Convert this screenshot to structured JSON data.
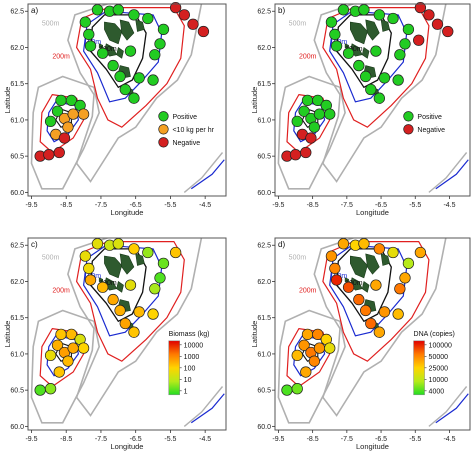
{
  "colors": {
    "land": "#2e5a2e",
    "c500": "#b0b0b0",
    "c200": "#e02020",
    "c150": "#1a2ad0",
    "c100": "#111111",
    "positive": "#22cc22",
    "low": "#f5a023",
    "negative": "#d42020",
    "frame": "#555555"
  },
  "axes": {
    "xlabel": "Longitude",
    "ylabel": "Latitude",
    "xticks": [
      "-9.5",
      "-8.5",
      "-7.5",
      "-6.5",
      "-5.5",
      "-4.5"
    ],
    "yticks": [
      "60.0",
      "60.5",
      "61.0",
      "61.5",
      "62.0",
      "62.5"
    ],
    "xlim": [
      -9.6,
      -3.9
    ],
    "ylim": [
      59.95,
      62.6
    ]
  },
  "depth_labels": [
    "500m",
    "200m",
    "150m",
    "100m"
  ],
  "chart_data": [
    {
      "panel": "a)",
      "type": "scatter",
      "legend": {
        "type": "categorical",
        "position": "center-right",
        "items": [
          {
            "label": "Positive",
            "color": "#22cc22"
          },
          {
            "label": "<10 kg per hr",
            "color": "#f5a023"
          },
          {
            "label": "Negative",
            "color": "#d42020"
          }
        ]
      },
      "points": [
        {
          "x": -7.6,
          "y": 62.52,
          "cat": "positive"
        },
        {
          "x": -7.25,
          "y": 62.5,
          "cat": "positive"
        },
        {
          "x": -7.0,
          "y": 62.52,
          "cat": "positive"
        },
        {
          "x": -6.55,
          "y": 62.45,
          "cat": "positive"
        },
        {
          "x": -6.15,
          "y": 62.4,
          "cat": "positive"
        },
        {
          "x": -5.7,
          "y": 62.25,
          "cat": "positive"
        },
        {
          "x": -5.8,
          "y": 62.05,
          "cat": "positive"
        },
        {
          "x": -7.95,
          "y": 62.35,
          "cat": "positive"
        },
        {
          "x": -7.85,
          "y": 62.18,
          "cat": "positive"
        },
        {
          "x": -7.8,
          "y": 62.02,
          "cat": "positive"
        },
        {
          "x": -7.45,
          "y": 61.92,
          "cat": "positive"
        },
        {
          "x": -6.65,
          "y": 61.95,
          "cat": "positive"
        },
        {
          "x": -5.95,
          "y": 61.9,
          "cat": "positive"
        },
        {
          "x": -7.15,
          "y": 61.75,
          "cat": "positive"
        },
        {
          "x": -6.95,
          "y": 61.6,
          "cat": "positive"
        },
        {
          "x": -6.4,
          "y": 61.58,
          "cat": "positive"
        },
        {
          "x": -6.8,
          "y": 61.42,
          "cat": "positive"
        },
        {
          "x": -6.55,
          "y": 61.3,
          "cat": "positive"
        },
        {
          "x": -6.0,
          "y": 61.55,
          "cat": "positive"
        },
        {
          "x": -5.35,
          "y": 62.55,
          "cat": "negative"
        },
        {
          "x": -5.1,
          "y": 62.45,
          "cat": "negative"
        },
        {
          "x": -4.85,
          "y": 62.32,
          "cat": "negative"
        },
        {
          "x": -4.55,
          "y": 62.22,
          "cat": "negative"
        },
        {
          "x": -8.65,
          "y": 61.27,
          "cat": "positive"
        },
        {
          "x": -8.35,
          "y": 61.27,
          "cat": "positive"
        },
        {
          "x": -8.1,
          "y": 61.2,
          "cat": "positive"
        },
        {
          "x": -8.75,
          "y": 61.12,
          "cat": "positive"
        },
        {
          "x": -8.95,
          "y": 60.98,
          "cat": "positive"
        },
        {
          "x": -8.55,
          "y": 61.02,
          "cat": "low"
        },
        {
          "x": -8.3,
          "y": 61.08,
          "cat": "low"
        },
        {
          "x": -8.0,
          "y": 61.08,
          "cat": "low"
        },
        {
          "x": -8.45,
          "y": 60.9,
          "cat": "low"
        },
        {
          "x": -8.8,
          "y": 60.8,
          "cat": "low"
        },
        {
          "x": -8.55,
          "y": 60.75,
          "cat": "negative"
        },
        {
          "x": -9.25,
          "y": 60.5,
          "cat": "negative"
        },
        {
          "x": -9.0,
          "y": 60.52,
          "cat": "negative"
        },
        {
          "x": -8.7,
          "y": 60.55,
          "cat": "negative"
        }
      ]
    },
    {
      "panel": "b)",
      "type": "scatter",
      "legend": {
        "type": "categorical",
        "position": "center-right",
        "items": [
          {
            "label": "Positive",
            "color": "#22cc22"
          },
          {
            "label": "Negative",
            "color": "#d42020"
          }
        ]
      },
      "points": [
        {
          "x": -7.6,
          "y": 62.52,
          "cat": "positive"
        },
        {
          "x": -7.25,
          "y": 62.5,
          "cat": "positive"
        },
        {
          "x": -7.0,
          "y": 62.52,
          "cat": "positive"
        },
        {
          "x": -6.55,
          "y": 62.45,
          "cat": "positive"
        },
        {
          "x": -6.15,
          "y": 62.4,
          "cat": "positive"
        },
        {
          "x": -5.7,
          "y": 62.25,
          "cat": "positive"
        },
        {
          "x": -5.8,
          "y": 62.05,
          "cat": "positive"
        },
        {
          "x": -7.95,
          "y": 62.35,
          "cat": "positive"
        },
        {
          "x": -7.85,
          "y": 62.18,
          "cat": "positive"
        },
        {
          "x": -7.8,
          "y": 62.02,
          "cat": "positive"
        },
        {
          "x": -7.45,
          "y": 61.92,
          "cat": "positive"
        },
        {
          "x": -6.65,
          "y": 61.95,
          "cat": "positive"
        },
        {
          "x": -5.95,
          "y": 61.9,
          "cat": "positive"
        },
        {
          "x": -7.15,
          "y": 61.75,
          "cat": "positive"
        },
        {
          "x": -6.95,
          "y": 61.6,
          "cat": "positive"
        },
        {
          "x": -6.4,
          "y": 61.58,
          "cat": "positive"
        },
        {
          "x": -6.8,
          "y": 61.42,
          "cat": "positive"
        },
        {
          "x": -6.55,
          "y": 61.3,
          "cat": "positive"
        },
        {
          "x": -6.0,
          "y": 61.55,
          "cat": "positive"
        },
        {
          "x": -5.35,
          "y": 62.55,
          "cat": "negative"
        },
        {
          "x": -5.1,
          "y": 62.45,
          "cat": "negative"
        },
        {
          "x": -4.85,
          "y": 62.32,
          "cat": "negative"
        },
        {
          "x": -4.55,
          "y": 62.22,
          "cat": "negative"
        },
        {
          "x": -5.4,
          "y": 62.1,
          "cat": "negative"
        },
        {
          "x": -8.65,
          "y": 61.27,
          "cat": "positive"
        },
        {
          "x": -8.35,
          "y": 61.27,
          "cat": "positive"
        },
        {
          "x": -8.1,
          "y": 61.2,
          "cat": "positive"
        },
        {
          "x": -8.75,
          "y": 61.12,
          "cat": "positive"
        },
        {
          "x": -8.95,
          "y": 60.98,
          "cat": "positive"
        },
        {
          "x": -8.55,
          "y": 61.02,
          "cat": "positive"
        },
        {
          "x": -8.3,
          "y": 61.08,
          "cat": "positive"
        },
        {
          "x": -8.0,
          "y": 61.08,
          "cat": "positive"
        },
        {
          "x": -8.45,
          "y": 60.9,
          "cat": "positive"
        },
        {
          "x": -8.8,
          "y": 60.8,
          "cat": "negative"
        },
        {
          "x": -8.55,
          "y": 60.75,
          "cat": "negative"
        },
        {
          "x": -9.25,
          "y": 60.5,
          "cat": "negative"
        },
        {
          "x": -9.0,
          "y": 60.52,
          "cat": "negative"
        },
        {
          "x": -8.7,
          "y": 60.55,
          "cat": "negative"
        }
      ]
    },
    {
      "panel": "c)",
      "type": "scatter",
      "legend": {
        "type": "gradient",
        "position": "center-right",
        "title": "Biomass (kg)",
        "labels": [
          "10000",
          "1000",
          "100",
          "10",
          "1"
        ],
        "colors": [
          "#e00000",
          "#ff7a00",
          "#ffd400",
          "#b6ea1a",
          "#22dd22"
        ]
      },
      "points": [
        {
          "x": -7.6,
          "y": 62.52,
          "v": 40
        },
        {
          "x": -7.25,
          "y": 62.5,
          "v": 20
        },
        {
          "x": -7.0,
          "y": 62.52,
          "v": 30
        },
        {
          "x": -6.55,
          "y": 62.45,
          "v": 120
        },
        {
          "x": -6.15,
          "y": 62.4,
          "v": 6
        },
        {
          "x": -5.7,
          "y": 62.25,
          "v": 3
        },
        {
          "x": -5.8,
          "y": 62.05,
          "v": 2
        },
        {
          "x": -5.35,
          "y": 62.4,
          "v": 150
        },
        {
          "x": -7.95,
          "y": 62.35,
          "v": 50
        },
        {
          "x": -7.85,
          "y": 62.18,
          "v": 60
        },
        {
          "x": -7.8,
          "y": 62.02,
          "v": 300
        },
        {
          "x": -7.45,
          "y": 61.92,
          "v": 200
        },
        {
          "x": -6.65,
          "y": 61.95,
          "v": 40
        },
        {
          "x": -5.95,
          "y": 61.9,
          "v": 8
        },
        {
          "x": -7.15,
          "y": 61.75,
          "v": 300
        },
        {
          "x": -6.95,
          "y": 61.6,
          "v": 250
        },
        {
          "x": -6.4,
          "y": 61.58,
          "v": 200
        },
        {
          "x": -6.8,
          "y": 61.42,
          "v": 350
        },
        {
          "x": -6.55,
          "y": 61.3,
          "v": 150
        },
        {
          "x": -6.0,
          "y": 61.55,
          "v": 100
        },
        {
          "x": -8.65,
          "y": 61.27,
          "v": 150
        },
        {
          "x": -8.35,
          "y": 61.27,
          "v": 200
        },
        {
          "x": -8.1,
          "y": 61.2,
          "v": 30
        },
        {
          "x": -8.75,
          "y": 61.12,
          "v": 250
        },
        {
          "x": -8.95,
          "y": 60.98,
          "v": 50
        },
        {
          "x": -8.55,
          "y": 61.02,
          "v": 400
        },
        {
          "x": -8.3,
          "y": 61.08,
          "v": 300
        },
        {
          "x": -8.0,
          "y": 61.08,
          "v": 100
        },
        {
          "x": -8.45,
          "y": 60.9,
          "v": 200
        },
        {
          "x": -8.7,
          "y": 60.75,
          "v": 150
        },
        {
          "x": -9.25,
          "y": 60.5,
          "v": 2
        },
        {
          "x": -8.95,
          "y": 60.52,
          "v": 5
        }
      ]
    },
    {
      "panel": "d)",
      "type": "scatter",
      "legend": {
        "type": "gradient",
        "position": "center-right",
        "title": "DNA (copies)",
        "labels": [
          "100000",
          "50000",
          "25000",
          "10000",
          "4000"
        ],
        "colors": [
          "#e00000",
          "#ff7a00",
          "#ffd400",
          "#b6ea1a",
          "#22dd22"
        ]
      },
      "points": [
        {
          "x": -7.6,
          "y": 62.52,
          "v": 30000
        },
        {
          "x": -7.25,
          "y": 62.5,
          "v": 20000
        },
        {
          "x": -7.0,
          "y": 62.52,
          "v": 25000
        },
        {
          "x": -6.55,
          "y": 62.45,
          "v": 40000
        },
        {
          "x": -6.15,
          "y": 62.4,
          "v": 15000
        },
        {
          "x": -5.7,
          "y": 62.25,
          "v": 9000
        },
        {
          "x": -5.8,
          "y": 62.05,
          "v": 30000
        },
        {
          "x": -5.35,
          "y": 62.4,
          "v": 30000
        },
        {
          "x": -7.95,
          "y": 62.35,
          "v": 35000
        },
        {
          "x": -7.85,
          "y": 62.18,
          "v": 40000
        },
        {
          "x": -7.8,
          "y": 62.02,
          "v": 80000
        },
        {
          "x": -7.45,
          "y": 61.92,
          "v": 60000
        },
        {
          "x": -6.65,
          "y": 61.95,
          "v": 30000
        },
        {
          "x": -5.95,
          "y": 61.9,
          "v": 45000
        },
        {
          "x": -7.15,
          "y": 61.75,
          "v": 50000
        },
        {
          "x": -6.95,
          "y": 61.6,
          "v": 45000
        },
        {
          "x": -6.4,
          "y": 61.58,
          "v": 35000
        },
        {
          "x": -6.8,
          "y": 61.42,
          "v": 50000
        },
        {
          "x": -6.55,
          "y": 61.3,
          "v": 30000
        },
        {
          "x": -6.0,
          "y": 61.55,
          "v": 25000
        },
        {
          "x": -8.65,
          "y": 61.27,
          "v": 30000
        },
        {
          "x": -8.35,
          "y": 61.27,
          "v": 40000
        },
        {
          "x": -8.1,
          "y": 61.2,
          "v": 20000
        },
        {
          "x": -8.75,
          "y": 61.12,
          "v": 35000
        },
        {
          "x": -8.95,
          "y": 60.98,
          "v": 25000
        },
        {
          "x": -8.55,
          "y": 61.02,
          "v": 45000
        },
        {
          "x": -8.3,
          "y": 61.08,
          "v": 35000
        },
        {
          "x": -8.0,
          "y": 61.08,
          "v": 15000
        },
        {
          "x": -8.45,
          "y": 60.9,
          "v": 40000
        },
        {
          "x": -8.7,
          "y": 60.75,
          "v": 30000
        },
        {
          "x": -9.25,
          "y": 60.5,
          "v": 5000
        },
        {
          "x": -8.95,
          "y": 60.52,
          "v": 6000
        }
      ]
    }
  ]
}
